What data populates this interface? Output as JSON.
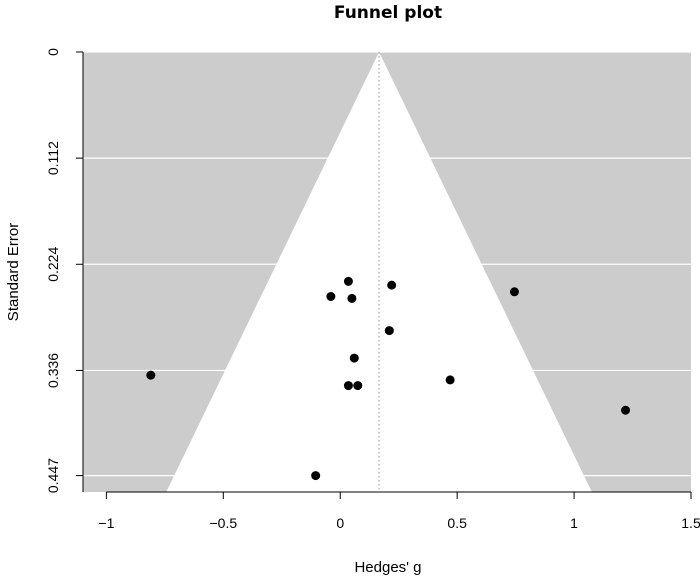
{
  "chart_data": {
    "type": "scatter",
    "title": "Funnel plot",
    "xlabel": "Hedges' g",
    "ylabel": "Standard Error",
    "xlim": [
      -1.1,
      1.5
    ],
    "ylim": [
      0.4643,
      0
    ],
    "x_ticks": [
      {
        "value": -1,
        "label": "−1"
      },
      {
        "value": -0.5,
        "label": "−0.5"
      },
      {
        "value": 0,
        "label": "0"
      },
      {
        "value": 0.5,
        "label": "0.5"
      },
      {
        "value": 1,
        "label": "1"
      },
      {
        "value": 1.5,
        "label": "1.5"
      }
    ],
    "y_ticks": [
      {
        "value": 0,
        "label": "0"
      },
      {
        "value": 0.112,
        "label": "0.112"
      },
      {
        "value": 0.224,
        "label": "0.224"
      },
      {
        "value": 0.336,
        "label": "0.336"
      },
      {
        "value": 0.447,
        "label": "0.447"
      }
    ],
    "summary_estimate": 0.166,
    "funnel_z": 1.96,
    "grid": true,
    "colors": {
      "panel_background": "#cccccc",
      "funnel_fill": "#ffffff",
      "gridline": "#ffffff",
      "points": "#000000",
      "reference_line": "#999999"
    },
    "points": [
      {
        "x": 0.035,
        "y": 0.242
      },
      {
        "x": 0.22,
        "y": 0.246
      },
      {
        "x": 0.745,
        "y": 0.253
      },
      {
        "x": -0.04,
        "y": 0.258
      },
      {
        "x": 0.05,
        "y": 0.26
      },
      {
        "x": 0.21,
        "y": 0.294
      },
      {
        "x": 0.06,
        "y": 0.323
      },
      {
        "x": -0.81,
        "y": 0.341
      },
      {
        "x": 0.47,
        "y": 0.346
      },
      {
        "x": 0.035,
        "y": 0.352
      },
      {
        "x": 0.075,
        "y": 0.352
      },
      {
        "x": 1.22,
        "y": 0.378
      },
      {
        "x": -0.105,
        "y": 0.447
      }
    ]
  }
}
